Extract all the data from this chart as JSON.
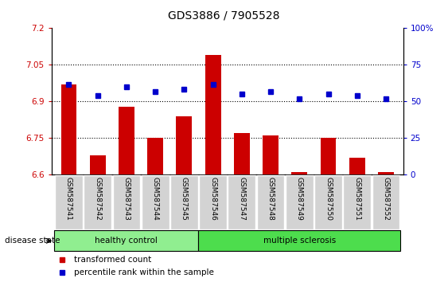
{
  "title": "GDS3886 / 7905528",
  "samples": [
    "GSM587541",
    "GSM587542",
    "GSM587543",
    "GSM587544",
    "GSM587545",
    "GSM587546",
    "GSM587547",
    "GSM587548",
    "GSM587549",
    "GSM587550",
    "GSM587551",
    "GSM587552"
  ],
  "bar_values": [
    6.97,
    6.68,
    6.88,
    6.75,
    6.84,
    7.09,
    6.77,
    6.76,
    6.61,
    6.75,
    6.67,
    6.61
  ],
  "dot_values": [
    6.97,
    6.925,
    6.96,
    6.94,
    6.95,
    6.97,
    6.93,
    6.94,
    6.91,
    6.93,
    6.925,
    6.91
  ],
  "bar_bottom": 6.6,
  "ylim_left": [
    6.6,
    7.2
  ],
  "ylim_right": [
    0,
    100
  ],
  "yticks_left": [
    6.6,
    6.75,
    6.9,
    7.05,
    7.2
  ],
  "yticks_left_labels": [
    "6.6",
    "6.75",
    "6.9",
    "7.05",
    "7.2"
  ],
  "yticks_right": [
    0,
    25,
    50,
    75,
    100
  ],
  "yticks_right_labels": [
    "0",
    "25",
    "50",
    "75",
    "100%"
  ],
  "hlines": [
    7.05,
    6.9,
    6.75
  ],
  "bar_color": "#cc0000",
  "dot_color": "#0000cc",
  "healthy_count": 5,
  "group_labels": [
    "healthy control",
    "multiple sclerosis"
  ],
  "disease_state_label": "disease state",
  "legend_bar_label": "transformed count",
  "legend_dot_label": "percentile rank within the sample",
  "tick_label_bg": "#d3d3d3",
  "title_fontsize": 10,
  "axis_fontsize": 7.5,
  "label_fontsize": 8,
  "bar_width": 0.55
}
